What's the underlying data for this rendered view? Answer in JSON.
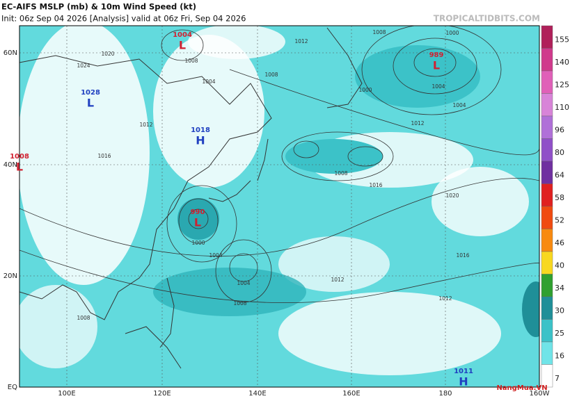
{
  "header": {
    "title": "EC-AIFS MSLP (mb) & 10m Wind Speed (kt)",
    "subtitle": "Init: 06z Sep 04 2026   [Analysis]   valid at 06z Fri, Sep 04 2026",
    "watermark": "TROPICALTIDBITS.COM"
  },
  "axes": {
    "lat_labels": [
      "60N",
      "40N",
      "20N",
      "EQ"
    ],
    "lon_labels": [
      "100E",
      "120E",
      "140E",
      "160E",
      "180",
      "160W"
    ]
  },
  "colorbar": {
    "levels": [
      155,
      140,
      125,
      110,
      96,
      80,
      64,
      58,
      52,
      46,
      40,
      34,
      30,
      25,
      16,
      7
    ],
    "colors": [
      "#b0205a",
      "#d03a8c",
      "#e060b8",
      "#d884d8",
      "#b070d8",
      "#9050c8",
      "#7030a0",
      "#e02020",
      "#f04a10",
      "#f88a10",
      "#f8d820",
      "#30a030",
      "#1f8f98",
      "#3cc2c8",
      "#70e4e8",
      "#ffffff"
    ]
  },
  "centers": [
    {
      "letter": "L",
      "pressure": "1004"
    },
    {
      "letter": "L",
      "pressure": "1028"
    },
    {
      "letter": "H",
      "pressure": "1018"
    },
    {
      "letter": "L",
      "pressure": "1008"
    },
    {
      "letter": "L",
      "pressure": "990"
    },
    {
      "letter": "L",
      "pressure": "989"
    },
    {
      "letter": "H",
      "pressure": "1011"
    }
  ],
  "isobar_labels": [
    "1008",
    "1012",
    "1020",
    "1024",
    "1008",
    "1004",
    "1000",
    "1004",
    "1008",
    "1012",
    "1016",
    "1020",
    "1008",
    "1004",
    "1016",
    "1012",
    "1012",
    "1016",
    "1008",
    "1012",
    "1000",
    "1004",
    "1008",
    "1004",
    "1000"
  ],
  "branding": "NangMua.VN"
}
